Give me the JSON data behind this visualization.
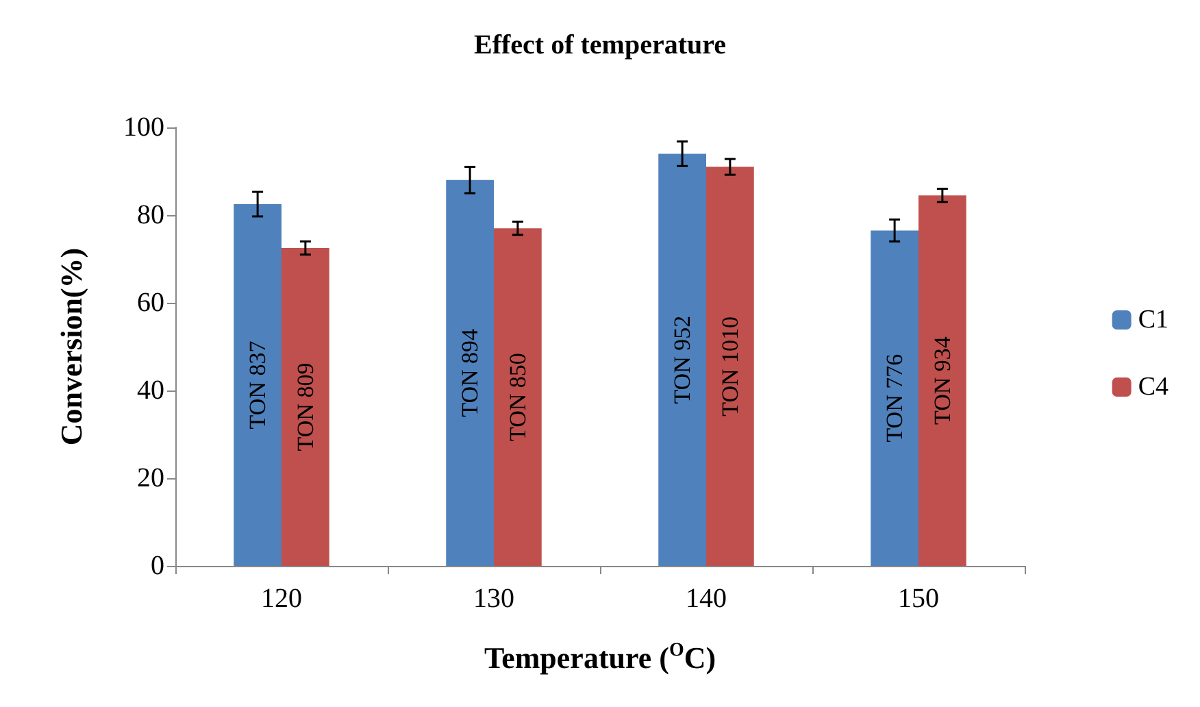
{
  "chart_data": {
    "type": "bar",
    "title": "Effect of temperature",
    "xlabel": "Temperature ($^{O}$C)",
    "ylabel": "Conversion(%)",
    "categories": [
      "120",
      "130",
      "140",
      "150"
    ],
    "series": [
      {
        "name": "C1",
        "color": "#4f81bd",
        "values": [
          82.5,
          88,
          94,
          76.5
        ],
        "errors": [
          2.8,
          3,
          2.8,
          2.5
        ],
        "value_labels": [
          "TON 837",
          "TON 894",
          "TON 952",
          "TON 776"
        ]
      },
      {
        "name": "C4",
        "color": "#c0504d",
        "values": [
          72.5,
          77,
          91,
          84.5
        ],
        "errors": [
          1.5,
          1.5,
          1.8,
          1.5
        ],
        "value_labels": [
          "TON 809",
          "TON 850",
          "TON 1010",
          "TON 934"
        ]
      }
    ],
    "ylim": [
      0,
      100
    ],
    "yticks": [
      0,
      20,
      40,
      60,
      80,
      100
    ],
    "grid": false,
    "legend": "right"
  }
}
